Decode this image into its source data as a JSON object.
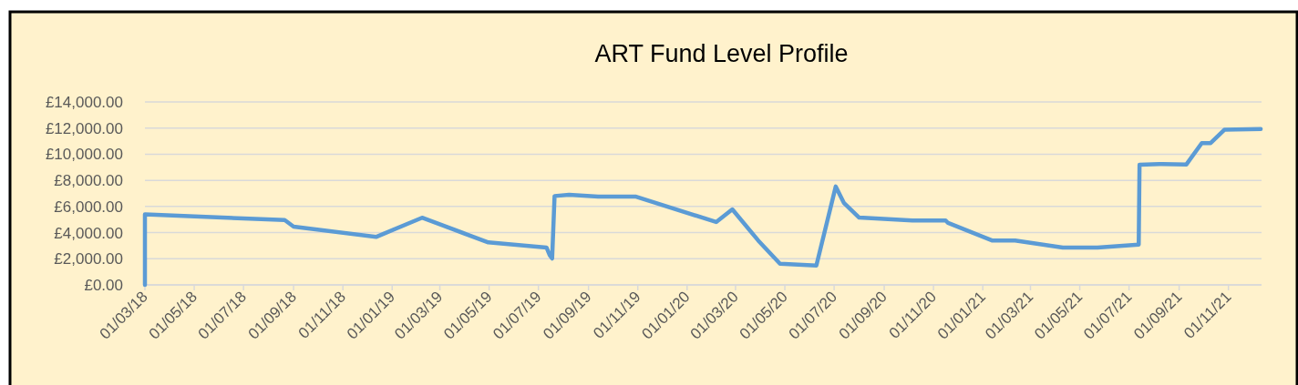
{
  "chart_data": {
    "type": "line",
    "title": "ART Fund Level Profile",
    "x": [
      "2018-03-01",
      "2018-03-01",
      "2018-08-21",
      "2018-09-01",
      "2018-12-12",
      "2019-02-07",
      "2019-04-30",
      "2019-07-11",
      "2019-07-15",
      "2019-07-18",
      "2019-07-21",
      "2019-08-08",
      "2019-09-13",
      "2019-10-29",
      "2020-02-06",
      "2020-02-26",
      "2020-03-29",
      "2020-04-25",
      "2020-06-09",
      "2020-07-03",
      "2020-07-13",
      "2020-08-01",
      "2020-10-06",
      "2020-11-16",
      "2020-11-19",
      "2021-01-13",
      "2021-02-10",
      "2021-04-10",
      "2021-05-23",
      "2021-07-13",
      "2021-07-14",
      "2021-08-11",
      "2021-09-10",
      "2021-09-29",
      "2021-10-10",
      "2021-10-27",
      "2021-11-10",
      "2021-12-11"
    ],
    "series": [
      {
        "color": "#5b9bd5",
        "values": [
          0,
          5390,
          4960,
          4460,
          3670,
          5140,
          3250,
          2860,
          2270,
          2020,
          6800,
          6900,
          6760,
          6760,
          4810,
          5780,
          3400,
          1620,
          1480,
          7530,
          6280,
          5150,
          4930,
          4930,
          4740,
          3390,
          3390,
          2860,
          2860,
          3090,
          9200,
          9250,
          9220,
          10850,
          10850,
          11870,
          11900,
          11930
        ]
      }
    ],
    "xlim": [
      "2018-03-01",
      "2021-12-12"
    ],
    "xticks": [
      {
        "value": "2018-03-01",
        "label": "01/03/18"
      },
      {
        "value": "2018-05-01",
        "label": "01/05/18"
      },
      {
        "value": "2018-07-01",
        "label": "01/07/18"
      },
      {
        "value": "2018-09-01",
        "label": "01/09/18"
      },
      {
        "value": "2018-11-01",
        "label": "01/11/18"
      },
      {
        "value": "2019-01-01",
        "label": "01/01/19"
      },
      {
        "value": "2019-03-01",
        "label": "01/03/19"
      },
      {
        "value": "2019-05-01",
        "label": "01/05/19"
      },
      {
        "value": "2019-07-01",
        "label": "01/07/19"
      },
      {
        "value": "2019-09-01",
        "label": "01/09/19"
      },
      {
        "value": "2019-11-01",
        "label": "01/11/19"
      },
      {
        "value": "2020-01-01",
        "label": "01/01/20"
      },
      {
        "value": "2020-03-01",
        "label": "01/03/20"
      },
      {
        "value": "2020-05-01",
        "label": "01/05/20"
      },
      {
        "value": "2020-07-01",
        "label": "01/07/20"
      },
      {
        "value": "2020-09-01",
        "label": "01/09/20"
      },
      {
        "value": "2020-11-01",
        "label": "01/11/20"
      },
      {
        "value": "2021-01-01",
        "label": "01/01/21"
      },
      {
        "value": "2021-03-01",
        "label": "01/03/21"
      },
      {
        "value": "2021-05-01",
        "label": "01/05/21"
      },
      {
        "value": "2021-07-01",
        "label": "01/07/21"
      },
      {
        "value": "2021-09-01",
        "label": "01/09/21"
      },
      {
        "value": "2021-11-01",
        "label": "01/11/21"
      }
    ],
    "ylim": [
      0,
      14000
    ],
    "yticks": [
      {
        "value": 0,
        "label": "£0.00"
      },
      {
        "value": 2000,
        "label": "£2,000.00"
      },
      {
        "value": 4000,
        "label": "£4,000.00"
      },
      {
        "value": 6000,
        "label": "£6,000.00"
      },
      {
        "value": 8000,
        "label": "£8,000.00"
      },
      {
        "value": 10000,
        "label": "£10,000.00"
      },
      {
        "value": 12000,
        "label": "£12,000.00"
      },
      {
        "value": 14000,
        "label": "£14,000.00"
      }
    ],
    "grid": "y",
    "marker": "none",
    "line_style": "solid"
  }
}
